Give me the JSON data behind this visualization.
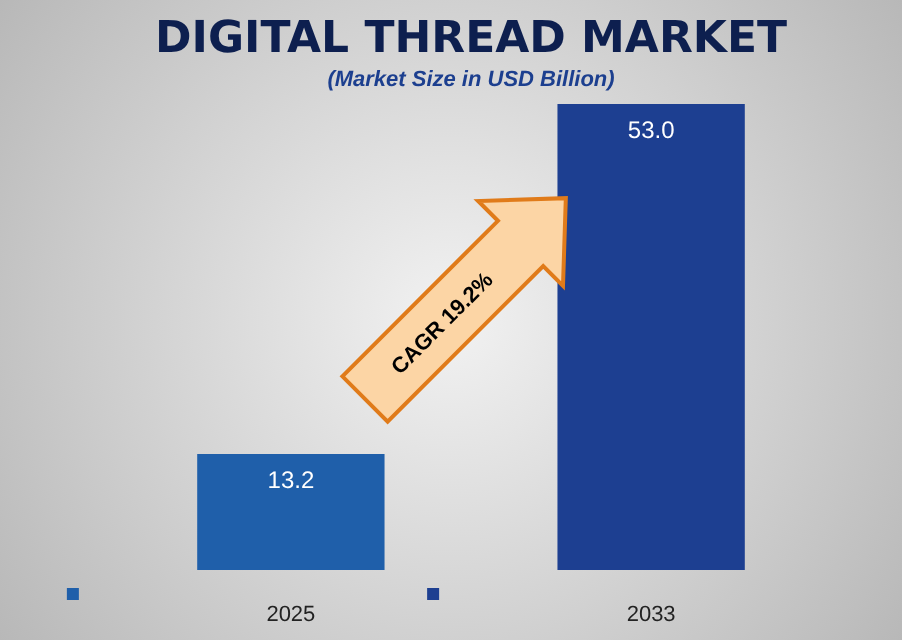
{
  "chart_data": {
    "type": "bar",
    "title": "DIGITAL THREAD MARKET",
    "subtitle": "(Market Size in USD Billion)",
    "categories": [
      "2025",
      "2033"
    ],
    "values": [
      13.2,
      53.0
    ],
    "colors": [
      "#1f5faa",
      "#1d3f91"
    ],
    "value_labels": [
      "13.2",
      "53.0"
    ],
    "annotations": [
      "CAGR 19.2%"
    ]
  }
}
